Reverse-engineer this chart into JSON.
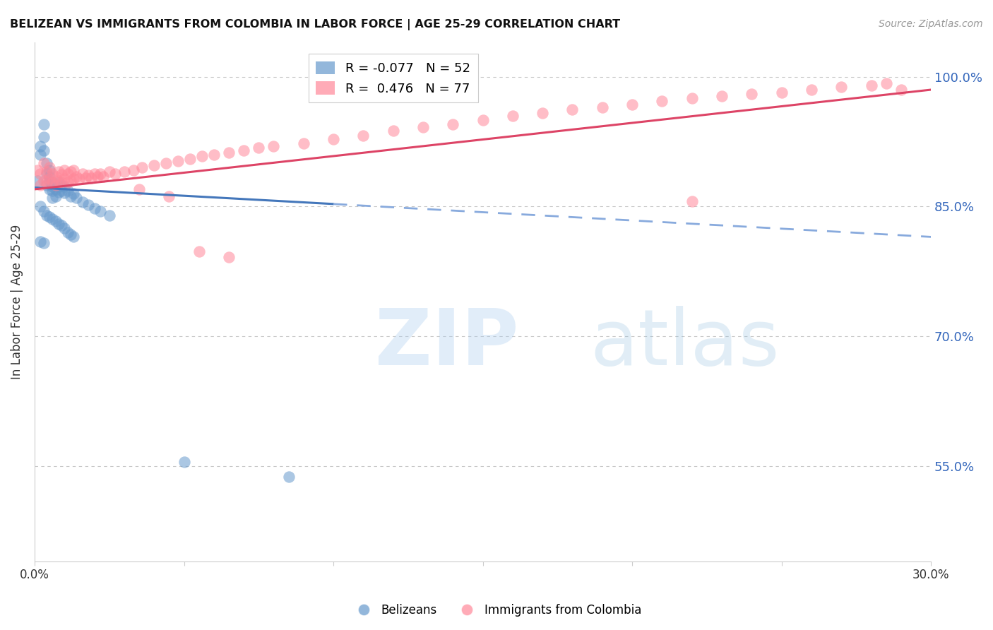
{
  "title": "BELIZEAN VS IMMIGRANTS FROM COLOMBIA IN LABOR FORCE | AGE 25-29 CORRELATION CHART",
  "source": "Source: ZipAtlas.com",
  "ylabel": "In Labor Force | Age 25-29",
  "yticks": [
    0.55,
    0.7,
    0.85,
    1.0
  ],
  "ytick_labels": [
    "55.0%",
    "70.0%",
    "85.0%",
    "100.0%"
  ],
  "xlim": [
    0.0,
    0.3
  ],
  "ylim": [
    0.44,
    1.04
  ],
  "blue_R": -0.077,
  "blue_N": 52,
  "pink_R": 0.476,
  "pink_N": 77,
  "blue_color": "#6699CC",
  "pink_color": "#FF8899",
  "trend_blue_solid": "#4477BB",
  "trend_blue_dash": "#88AADD",
  "trend_pink": "#DD4466",
  "blue_label": "Belizeans",
  "pink_label": "Immigrants from Colombia",
  "blue_trend_x0": 0.0,
  "blue_trend_x_solid_end": 0.1,
  "blue_trend_x1": 0.3,
  "blue_trend_y0": 0.872,
  "blue_trend_y1": 0.815,
  "pink_trend_x0": 0.0,
  "pink_trend_x1": 0.3,
  "pink_trend_y0": 0.87,
  "pink_trend_y1": 0.985,
  "blue_x": [
    0.001,
    0.002,
    0.002,
    0.003,
    0.003,
    0.003,
    0.004,
    0.004,
    0.004,
    0.005,
    0.005,
    0.005,
    0.005,
    0.006,
    0.006,
    0.006,
    0.006,
    0.007,
    0.007,
    0.007,
    0.008,
    0.008,
    0.008,
    0.009,
    0.009,
    0.01,
    0.01,
    0.011,
    0.012,
    0.013,
    0.014,
    0.016,
    0.018,
    0.02,
    0.022,
    0.025,
    0.002,
    0.003,
    0.004,
    0.005,
    0.006,
    0.007,
    0.008,
    0.009,
    0.01,
    0.011,
    0.012,
    0.013,
    0.002,
    0.003,
    0.05,
    0.085
  ],
  "blue_y": [
    0.88,
    0.92,
    0.91,
    0.945,
    0.93,
    0.915,
    0.9,
    0.888,
    0.875,
    0.892,
    0.885,
    0.88,
    0.87,
    0.878,
    0.873,
    0.868,
    0.86,
    0.875,
    0.87,
    0.862,
    0.878,
    0.873,
    0.867,
    0.875,
    0.868,
    0.873,
    0.866,
    0.868,
    0.862,
    0.865,
    0.86,
    0.855,
    0.852,
    0.848,
    0.845,
    0.84,
    0.85,
    0.845,
    0.84,
    0.838,
    0.836,
    0.833,
    0.83,
    0.828,
    0.825,
    0.82,
    0.818,
    0.815,
    0.81,
    0.808,
    0.555,
    0.538
  ],
  "pink_x": [
    0.001,
    0.002,
    0.002,
    0.003,
    0.003,
    0.004,
    0.004,
    0.005,
    0.005,
    0.006,
    0.006,
    0.007,
    0.007,
    0.008,
    0.008,
    0.009,
    0.009,
    0.01,
    0.01,
    0.011,
    0.011,
    0.012,
    0.012,
    0.013,
    0.013,
    0.014,
    0.015,
    0.016,
    0.017,
    0.018,
    0.019,
    0.02,
    0.021,
    0.022,
    0.023,
    0.025,
    0.027,
    0.03,
    0.033,
    0.036,
    0.04,
    0.044,
    0.048,
    0.052,
    0.056,
    0.06,
    0.065,
    0.07,
    0.075,
    0.08,
    0.09,
    0.1,
    0.11,
    0.12,
    0.13,
    0.14,
    0.15,
    0.16,
    0.17,
    0.18,
    0.19,
    0.2,
    0.21,
    0.22,
    0.23,
    0.24,
    0.25,
    0.26,
    0.27,
    0.28,
    0.285,
    0.29,
    0.22,
    0.035,
    0.045,
    0.055,
    0.065
  ],
  "pink_y": [
    0.892,
    0.875,
    0.888,
    0.88,
    0.9,
    0.878,
    0.89,
    0.882,
    0.895,
    0.878,
    0.888,
    0.875,
    0.885,
    0.88,
    0.89,
    0.878,
    0.887,
    0.882,
    0.892,
    0.878,
    0.888,
    0.88,
    0.89,
    0.882,
    0.892,
    0.885,
    0.882,
    0.888,
    0.883,
    0.886,
    0.883,
    0.888,
    0.885,
    0.888,
    0.885,
    0.89,
    0.888,
    0.89,
    0.892,
    0.895,
    0.898,
    0.9,
    0.903,
    0.905,
    0.908,
    0.91,
    0.912,
    0.915,
    0.918,
    0.92,
    0.923,
    0.928,
    0.932,
    0.938,
    0.942,
    0.945,
    0.95,
    0.955,
    0.958,
    0.962,
    0.965,
    0.968,
    0.972,
    0.975,
    0.978,
    0.98,
    0.982,
    0.985,
    0.988,
    0.99,
    0.992,
    0.985,
    0.856,
    0.87,
    0.862,
    0.798,
    0.792
  ]
}
